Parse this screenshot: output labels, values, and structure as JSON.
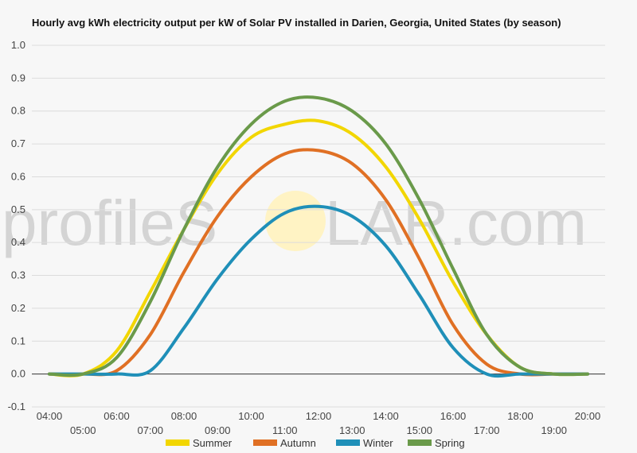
{
  "chart_data": {
    "type": "line",
    "title": "Hourly avg kWh electricity output per kW of Solar PV installed in Darien, Georgia, United States (by season)",
    "xlabel": "",
    "ylabel": "",
    "x": [
      "04:00",
      "05:00",
      "06:00",
      "07:00",
      "08:00",
      "09:00",
      "10:00",
      "11:00",
      "12:00",
      "13:00",
      "14:00",
      "15:00",
      "16:00",
      "17:00",
      "18:00",
      "19:00",
      "20:00"
    ],
    "ylim": [
      -0.1,
      1.0
    ],
    "yticks": [
      "-0.1",
      "0.0",
      "0.1",
      "0.2",
      "0.3",
      "0.4",
      "0.5",
      "0.6",
      "0.7",
      "0.8",
      "0.9",
      "1.0"
    ],
    "grid": true,
    "legend_position": "bottom",
    "series": [
      {
        "name": "Summer",
        "color": "#f2d600",
        "values": [
          0.0,
          0.0,
          0.07,
          0.25,
          0.44,
          0.61,
          0.72,
          0.76,
          0.77,
          0.73,
          0.63,
          0.47,
          0.28,
          0.12,
          0.02,
          0.0,
          0.0
        ]
      },
      {
        "name": "Autumn",
        "color": "#e07024",
        "values": [
          0.0,
          0.0,
          0.01,
          0.12,
          0.31,
          0.48,
          0.6,
          0.67,
          0.68,
          0.64,
          0.53,
          0.35,
          0.15,
          0.03,
          0.0,
          0.0,
          0.0
        ]
      },
      {
        "name": "Winter",
        "color": "#1f8fb8",
        "values": [
          0.0,
          0.0,
          0.0,
          0.01,
          0.14,
          0.29,
          0.41,
          0.49,
          0.51,
          0.48,
          0.39,
          0.24,
          0.08,
          0.0,
          0.0,
          0.0,
          0.0
        ]
      },
      {
        "name": "Spring",
        "color": "#6a9a4a",
        "values": [
          0.0,
          0.0,
          0.05,
          0.22,
          0.44,
          0.63,
          0.76,
          0.83,
          0.84,
          0.8,
          0.7,
          0.53,
          0.32,
          0.12,
          0.02,
          0.0,
          0.0
        ]
      }
    ]
  },
  "watermark": {
    "text_left": "profileS",
    "text_right": "LAR.com",
    "sun_color": "#fff3c4"
  }
}
